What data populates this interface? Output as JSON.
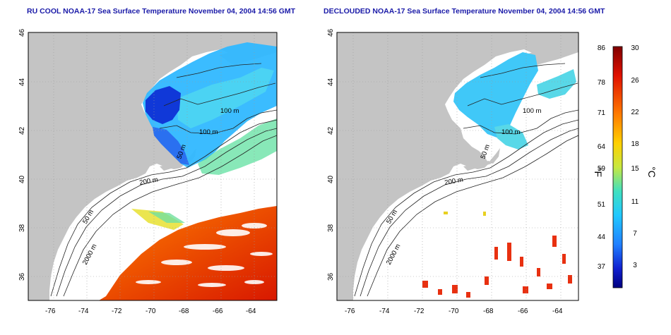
{
  "titles": {
    "left": "RU COOL NOAA-17 Sea Surface Temperature November 04, 2004 14:56 GMT",
    "right": "DECLOUDED NOAA-17 Sea Surface Temperature November 04, 2004 14:56 GMT"
  },
  "axes": {
    "x_ticks": [
      "-76",
      "-74",
      "-72",
      "-70",
      "-68",
      "-66",
      "-64"
    ],
    "y_ticks": [
      "46",
      "44",
      "42",
      "40",
      "38",
      "36"
    ]
  },
  "contour_labels": {
    "left": [
      "100 m",
      "100 m",
      "50 m",
      "200 m",
      "50 m",
      "2000 m"
    ],
    "right": [
      "100 m",
      "100 m",
      "50 m",
      "200 m",
      "50 m",
      "2000 m"
    ]
  },
  "colorbar": {
    "fahrenheit_ticks": [
      "86",
      "78",
      "71",
      "64",
      "59",
      "51",
      "44",
      "37"
    ],
    "celsius_ticks": [
      "30",
      "26",
      "22",
      "18",
      "15",
      "11",
      "7",
      "3"
    ],
    "fahrenheit_unit": "°F",
    "celsius_unit": "°C",
    "colors": [
      "#7f0000",
      "#ff2000",
      "#ffa000",
      "#e8e020",
      "#40e0a0",
      "#20c0ff",
      "#0040ff",
      "#000080"
    ]
  },
  "colors": {
    "land": "#c4c4c4",
    "title": "#1a1aa8"
  }
}
